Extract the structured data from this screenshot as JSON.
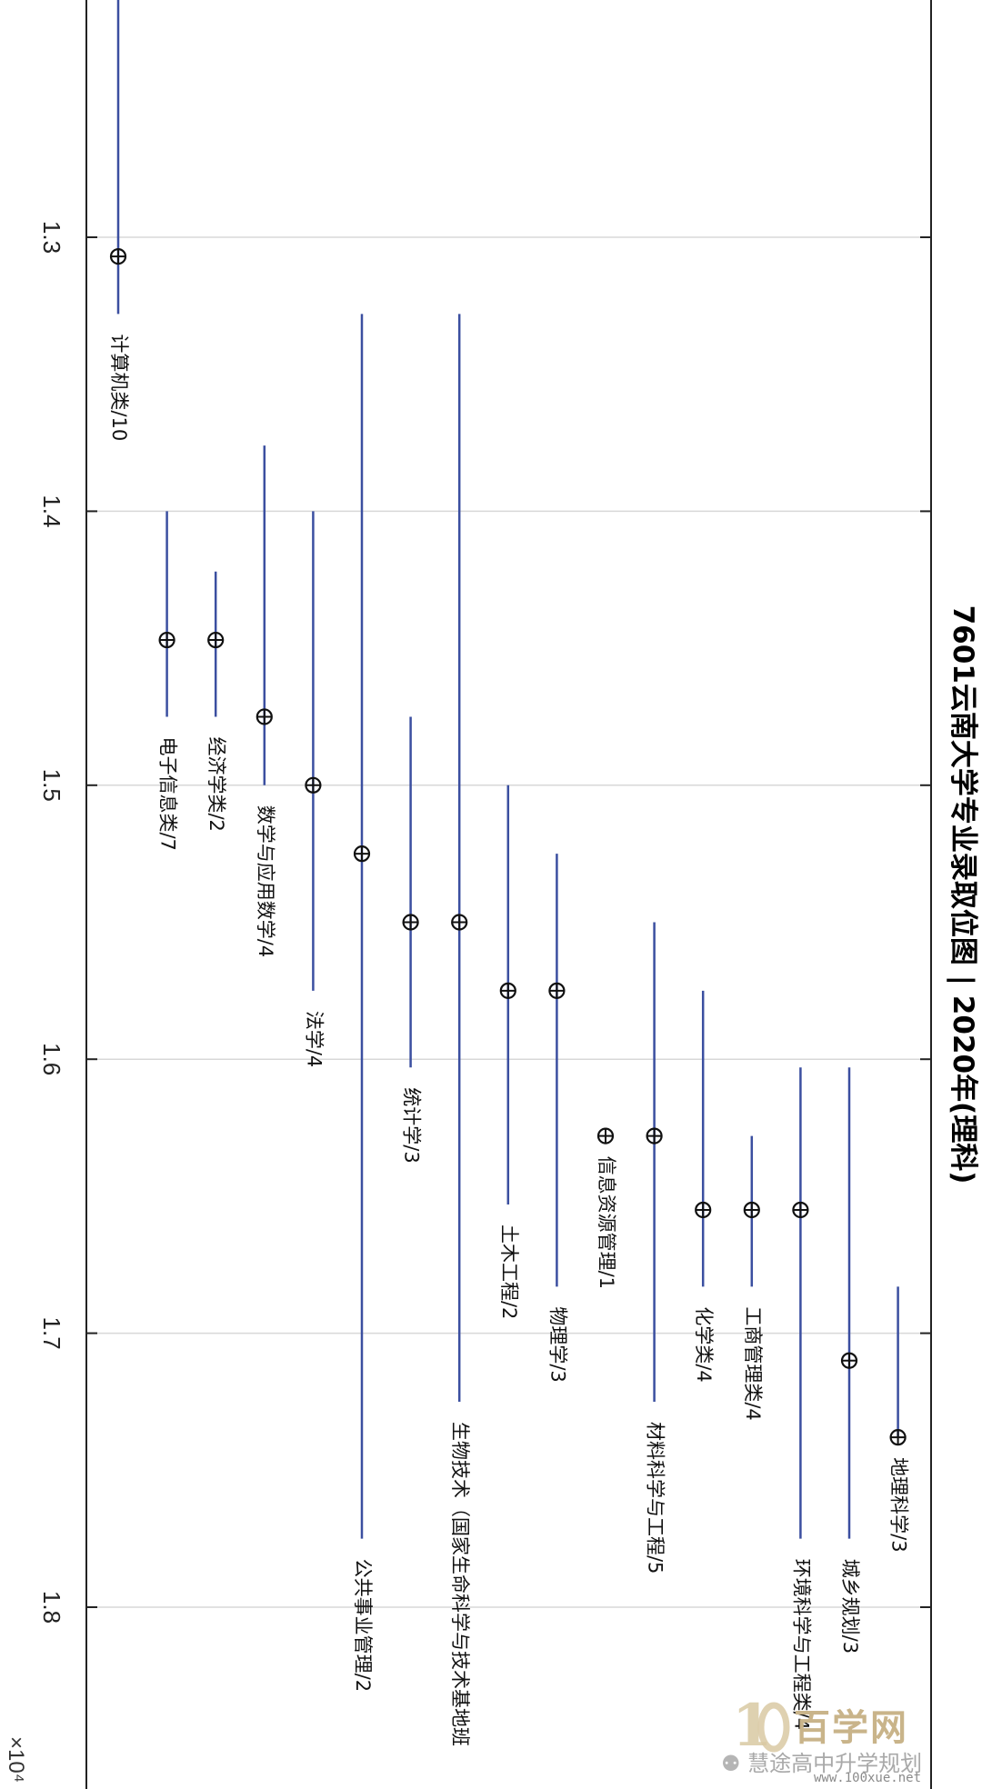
{
  "chart_data": {
    "type": "scatter",
    "title": "7601云南大学专业录取位图 | 2020年(理科)",
    "axis_multiplier": "×10⁴",
    "ylim": [
      1.22,
      1.88
    ],
    "y_ticks": [
      1.3,
      1.4,
      1.5,
      1.6,
      1.7,
      1.8
    ],
    "y_tick_labels": [
      "1.3",
      "1.4",
      "1.5",
      "1.6",
      "1.7",
      "1.8"
    ],
    "grid": true,
    "series": [
      {
        "label": "计算机类/10",
        "value": 1.307,
        "range": [
          1.199,
          1.328
        ]
      },
      {
        "label": "电子信息类/7",
        "value": 1.447,
        "range": [
          1.4,
          1.475
        ]
      },
      {
        "label": "经济学类/2",
        "value": 1.447,
        "range": [
          1.422,
          1.475
        ]
      },
      {
        "label": "数学与应用数学/4",
        "value": 1.475,
        "range": [
          1.376,
          1.5
        ]
      },
      {
        "label": "法学/4",
        "value": 1.5,
        "range": [
          1.4,
          1.575
        ]
      },
      {
        "label": "公共事业管理/2",
        "value": 1.525,
        "range": [
          1.328,
          1.775
        ]
      },
      {
        "label": "统计学/3",
        "value": 1.55,
        "range": [
          1.475,
          1.603
        ]
      },
      {
        "label": "生物技术（国家生命科学与技术基地班",
        "value": 1.55,
        "range": [
          1.328,
          1.725
        ]
      },
      {
        "label": "土木工程/2",
        "value": 1.575,
        "range": [
          1.5,
          1.653
        ]
      },
      {
        "label": "物理学/3",
        "value": 1.575,
        "range": [
          1.525,
          1.683
        ]
      },
      {
        "label": "信息资源管理/1",
        "value": 1.628,
        "range": [
          1.628,
          1.628
        ]
      },
      {
        "label": "材料科学与工程/5",
        "value": 1.628,
        "range": [
          1.55,
          1.725
        ]
      },
      {
        "label": "化学类/4",
        "value": 1.655,
        "range": [
          1.575,
          1.683
        ]
      },
      {
        "label": "工商管理类/4",
        "value": 1.655,
        "range": [
          1.628,
          1.683
        ]
      },
      {
        "label": "环境科学与工程类/4",
        "value": 1.655,
        "range": [
          1.603,
          1.775
        ]
      },
      {
        "label": "城乡规划/3",
        "value": 1.71,
        "range": [
          1.603,
          1.775
        ]
      },
      {
        "label": "地理科学/3",
        "value": 1.738,
        "range": [
          1.683,
          1.738
        ]
      }
    ],
    "colors": {
      "range_line": "#3b4fa0",
      "marker": "#111111",
      "grid": "#d8d8d8",
      "axis": "#222222"
    }
  },
  "watermark": {
    "brand": "百学网",
    "sub": "慧途高中升学规划",
    "url": "www.100xue.net"
  }
}
